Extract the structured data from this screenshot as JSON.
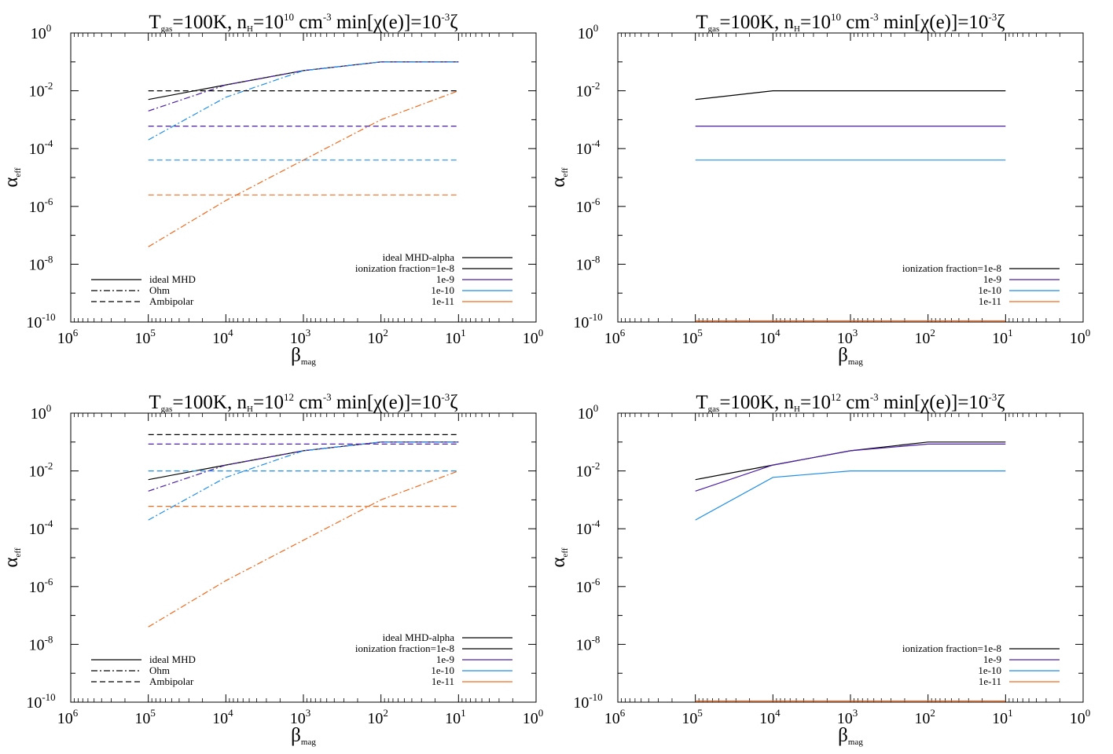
{
  "figure": {
    "panels": [
      {
        "title": {
          "a": "T",
          "b": "gas",
          "c": "=100K, n",
          "d": "H",
          "e": "=10",
          "f": "10",
          "g": " cm",
          "h": "-3",
          "i": " min[χ(e)]=10",
          "j": "-3",
          "k": "ζ"
        },
        "xlabel": {
          "main": "β",
          "sub": "mag"
        },
        "ylabel": {
          "main": "α",
          "sub": "eff"
        }
      },
      {
        "title": {
          "a": "T",
          "b": "gas",
          "c": "=100K, n",
          "d": "H",
          "e": "=10",
          "f": "10",
          "g": " cm",
          "h": "-3",
          "i": " min[χ(e)]=10",
          "j": "-3",
          "k": "ζ"
        },
        "xlabel": {
          "main": "β",
          "sub": "mag"
        },
        "ylabel": {
          "main": "α",
          "sub": "eff"
        }
      },
      {
        "title": {
          "a": "T",
          "b": "gas",
          "c": "=100K, n",
          "d": "H",
          "e": "=10",
          "f": "12",
          "g": " cm",
          "h": "-3",
          "i": " min[χ(e)]=10",
          "j": "-3",
          "k": "ζ"
        },
        "xlabel": {
          "main": "β",
          "sub": "mag"
        },
        "ylabel": {
          "main": "α",
          "sub": "eff"
        }
      },
      {
        "title": {
          "a": "T",
          "b": "gas",
          "c": "=100K, n",
          "d": "H",
          "e": "=10",
          "f": "12",
          "g": " cm",
          "h": "-3",
          "i": " min[χ(e)]=10",
          "j": "-3",
          "k": "ζ"
        },
        "xlabel": {
          "main": "β",
          "sub": "mag"
        },
        "ylabel": {
          "main": "α",
          "sub": "eff"
        }
      }
    ]
  },
  "chart_data": [
    {
      "type": "line",
      "title": "Tgas=100K, nH=10^10 cm^-3 min[χ(e)]=10^-3ζ",
      "xlabel": "βmag",
      "ylabel": "αeff",
      "x_scale": "log",
      "x_reversed": true,
      "xlim": [
        1000000,
        1
      ],
      "y_scale": "log",
      "ylim": [
        1e-10,
        1
      ],
      "x_ticks": [
        {
          "base": "10",
          "exp": "6"
        },
        {
          "base": "10",
          "exp": "5"
        },
        {
          "base": "10",
          "exp": "4"
        },
        {
          "base": "10",
          "exp": "3"
        },
        {
          "base": "10",
          "exp": "2"
        },
        {
          "base": "10",
          "exp": "1"
        },
        {
          "base": "10",
          "exp": "0"
        }
      ],
      "y_ticks": [
        {
          "base": "10",
          "exp": "0"
        },
        {
          "base": "10",
          "exp": "-2"
        },
        {
          "base": "10",
          "exp": "-4"
        },
        {
          "base": "10",
          "exp": "-6"
        },
        {
          "base": "10",
          "exp": "-8"
        },
        {
          "base": "10",
          "exp": "-10"
        }
      ],
      "style_legend": [
        {
          "label": "ideal MHD",
          "dash": "solid"
        },
        {
          "label": "Ohm",
          "dash": "dashdot"
        },
        {
          "label": "Ambipolar",
          "dash": "dashed"
        }
      ],
      "color_legend": [
        {
          "label": "ideal MHD-alpha",
          "color": "#000000"
        },
        {
          "label": "ionization fraction=1e-8",
          "color": "#000000"
        },
        {
          "label": "1e-9",
          "color": "#4b1ea8"
        },
        {
          "label": "1e-10",
          "color": "#1f8ee8"
        },
        {
          "label": "1e-11",
          "color": "#f06a1e"
        }
      ],
      "series": [
        {
          "color": "#000000",
          "dash": "solid",
          "x": [
            100000,
            10000,
            1000,
            100,
            10
          ],
          "y": [
            0.005,
            0.016,
            0.05,
            0.1,
            0.1
          ]
        },
        {
          "color": "#4b1ea8",
          "dash": "dashdot",
          "x": [
            100000,
            10000,
            1000,
            100,
            10
          ],
          "y": [
            0.002,
            0.016,
            0.05,
            0.1,
            0.1
          ]
        },
        {
          "color": "#1f8ee8",
          "dash": "dashdot",
          "x": [
            100000,
            10000,
            1000,
            100,
            10
          ],
          "y": [
            0.0002,
            0.006,
            0.05,
            0.1,
            0.1
          ]
        },
        {
          "color": "#f06a1e",
          "dash": "dashdot",
          "x": [
            100000,
            10000,
            1000,
            100,
            10
          ],
          "y": [
            4e-08,
            1.6e-06,
            4e-05,
            0.001,
            0.01
          ]
        },
        {
          "color": "#000000",
          "dash": "dashed",
          "x": [
            100000,
            10
          ],
          "y": [
            0.01,
            0.01
          ]
        },
        {
          "color": "#4b1ea8",
          "dash": "dashed",
          "x": [
            100000,
            10
          ],
          "y": [
            0.0006,
            0.0006
          ]
        },
        {
          "color": "#1f8ee8",
          "dash": "dashed",
          "x": [
            100000,
            10
          ],
          "y": [
            4e-05,
            4e-05
          ]
        },
        {
          "color": "#f06a1e",
          "dash": "dashed",
          "x": [
            100000,
            10
          ],
          "y": [
            2.5e-06,
            2.5e-06
          ]
        }
      ]
    },
    {
      "type": "line",
      "title": "Tgas=100K, nH=10^10 cm^-3 min[χ(e)]=10^-3ζ",
      "xlabel": "βmag",
      "ylabel": "αeff",
      "x_scale": "log",
      "x_reversed": true,
      "xlim": [
        1000000,
        1
      ],
      "y_scale": "log",
      "ylim": [
        1e-10,
        1
      ],
      "x_ticks": [
        {
          "base": "10",
          "exp": "6"
        },
        {
          "base": "10",
          "exp": "5"
        },
        {
          "base": "10",
          "exp": "4"
        },
        {
          "base": "10",
          "exp": "3"
        },
        {
          "base": "10",
          "exp": "2"
        },
        {
          "base": "10",
          "exp": "1"
        },
        {
          "base": "10",
          "exp": "0"
        }
      ],
      "y_ticks": [
        {
          "base": "10",
          "exp": "0"
        },
        {
          "base": "10",
          "exp": "-2"
        },
        {
          "base": "10",
          "exp": "-4"
        },
        {
          "base": "10",
          "exp": "-6"
        },
        {
          "base": "10",
          "exp": "-8"
        },
        {
          "base": "10",
          "exp": "-10"
        }
      ],
      "style_legend": [],
      "color_legend": [
        {
          "label": "ionization fraction=1e-8",
          "color": "#000000"
        },
        {
          "label": "1e-9",
          "color": "#4b1ea8"
        },
        {
          "label": "1e-10",
          "color": "#1f8ee8"
        },
        {
          "label": "1e-11",
          "color": "#f06a1e"
        }
      ],
      "series": [
        {
          "color": "#000000",
          "dash": "solid",
          "x": [
            100000,
            10000,
            1000,
            100,
            10
          ],
          "y": [
            0.005,
            0.01,
            0.01,
            0.01,
            0.01
          ]
        },
        {
          "color": "#4b1ea8",
          "dash": "solid",
          "x": [
            100000,
            10
          ],
          "y": [
            0.0006,
            0.0006
          ]
        },
        {
          "color": "#1f8ee8",
          "dash": "solid",
          "x": [
            100000,
            10
          ],
          "y": [
            4e-05,
            4e-05
          ]
        },
        {
          "color": "#f06a1e",
          "dash": "solid",
          "x": [
            100000,
            10
          ],
          "y": [
            1e-10,
            1e-10
          ]
        }
      ]
    },
    {
      "type": "line",
      "title": "Tgas=100K, nH=10^12 cm^-3 min[χ(e)]=10^-3ζ",
      "xlabel": "βmag",
      "ylabel": "αeff",
      "x_scale": "log",
      "x_reversed": true,
      "xlim": [
        1000000,
        1
      ],
      "y_scale": "log",
      "ylim": [
        1e-10,
        1
      ],
      "x_ticks": [
        {
          "base": "10",
          "exp": "6"
        },
        {
          "base": "10",
          "exp": "5"
        },
        {
          "base": "10",
          "exp": "4"
        },
        {
          "base": "10",
          "exp": "3"
        },
        {
          "base": "10",
          "exp": "2"
        },
        {
          "base": "10",
          "exp": "1"
        },
        {
          "base": "10",
          "exp": "0"
        }
      ],
      "y_ticks": [
        {
          "base": "10",
          "exp": "0"
        },
        {
          "base": "10",
          "exp": "-2"
        },
        {
          "base": "10",
          "exp": "-4"
        },
        {
          "base": "10",
          "exp": "-6"
        },
        {
          "base": "10",
          "exp": "-8"
        },
        {
          "base": "10",
          "exp": "-10"
        }
      ],
      "style_legend": [
        {
          "label": "ideal MHD",
          "dash": "solid"
        },
        {
          "label": "Ohm",
          "dash": "dashdot"
        },
        {
          "label": "Ambipolar",
          "dash": "dashed"
        }
      ],
      "color_legend": [
        {
          "label": "ideal MHD-alpha",
          "color": "#000000"
        },
        {
          "label": "ionization fraction=1e-8",
          "color": "#000000"
        },
        {
          "label": "1e-9",
          "color": "#4b1ea8"
        },
        {
          "label": "1e-10",
          "color": "#1f8ee8"
        },
        {
          "label": "1e-11",
          "color": "#f06a1e"
        }
      ],
      "series": [
        {
          "color": "#000000",
          "dash": "solid",
          "x": [
            100000,
            10000,
            1000,
            100,
            10
          ],
          "y": [
            0.005,
            0.016,
            0.05,
            0.1,
            0.1
          ]
        },
        {
          "color": "#4b1ea8",
          "dash": "dashdot",
          "x": [
            100000,
            10000,
            1000,
            100,
            10
          ],
          "y": [
            0.002,
            0.016,
            0.05,
            0.1,
            0.1
          ]
        },
        {
          "color": "#1f8ee8",
          "dash": "dashdot",
          "x": [
            100000,
            10000,
            1000,
            100,
            10
          ],
          "y": [
            0.0002,
            0.006,
            0.05,
            0.1,
            0.1
          ]
        },
        {
          "color": "#f06a1e",
          "dash": "dashdot",
          "x": [
            100000,
            10000,
            1000,
            100,
            10
          ],
          "y": [
            4e-08,
            1.6e-06,
            4e-05,
            0.001,
            0.01
          ]
        },
        {
          "color": "#000000",
          "dash": "dashed",
          "x": [
            100000,
            10
          ],
          "y": [
            0.18,
            0.18
          ]
        },
        {
          "color": "#4b1ea8",
          "dash": "dashed",
          "x": [
            100000,
            10
          ],
          "y": [
            0.085,
            0.085
          ]
        },
        {
          "color": "#1f8ee8",
          "dash": "dashed",
          "x": [
            100000,
            10
          ],
          "y": [
            0.01,
            0.01
          ]
        },
        {
          "color": "#f06a1e",
          "dash": "dashed",
          "x": [
            100000,
            10
          ],
          "y": [
            0.0006,
            0.0006
          ]
        }
      ]
    },
    {
      "type": "line",
      "title": "Tgas=100K, nH=10^12 cm^-3 min[χ(e)]=10^-3ζ",
      "xlabel": "βmag",
      "ylabel": "αeff",
      "x_scale": "log",
      "x_reversed": true,
      "xlim": [
        1000000,
        1
      ],
      "y_scale": "log",
      "ylim": [
        1e-10,
        1
      ],
      "x_ticks": [
        {
          "base": "10",
          "exp": "6"
        },
        {
          "base": "10",
          "exp": "5"
        },
        {
          "base": "10",
          "exp": "4"
        },
        {
          "base": "10",
          "exp": "3"
        },
        {
          "base": "10",
          "exp": "2"
        },
        {
          "base": "10",
          "exp": "1"
        },
        {
          "base": "10",
          "exp": "0"
        }
      ],
      "y_ticks": [
        {
          "base": "10",
          "exp": "0"
        },
        {
          "base": "10",
          "exp": "-2"
        },
        {
          "base": "10",
          "exp": "-4"
        },
        {
          "base": "10",
          "exp": "-6"
        },
        {
          "base": "10",
          "exp": "-8"
        },
        {
          "base": "10",
          "exp": "-10"
        }
      ],
      "style_legend": [],
      "color_legend": [
        {
          "label": "ionization fraction=1e-8",
          "color": "#000000"
        },
        {
          "label": "1e-9",
          "color": "#4b1ea8"
        },
        {
          "label": "1e-10",
          "color": "#1f8ee8"
        },
        {
          "label": "1e-11",
          "color": "#f06a1e"
        }
      ],
      "series": [
        {
          "color": "#000000",
          "dash": "solid",
          "x": [
            100000,
            10000,
            1000,
            100,
            10
          ],
          "y": [
            0.005,
            0.016,
            0.05,
            0.1,
            0.1
          ]
        },
        {
          "color": "#4b1ea8",
          "dash": "solid",
          "x": [
            100000,
            10000,
            1000,
            100,
            10
          ],
          "y": [
            0.002,
            0.016,
            0.05,
            0.085,
            0.085
          ]
        },
        {
          "color": "#1f8ee8",
          "dash": "solid",
          "x": [
            100000,
            10000,
            1000,
            100,
            10
          ],
          "y": [
            0.0002,
            0.006,
            0.01,
            0.01,
            0.01
          ]
        },
        {
          "color": "#f06a1e",
          "dash": "solid",
          "x": [
            100000,
            10
          ],
          "y": [
            1e-10,
            1e-10
          ]
        }
      ]
    }
  ]
}
